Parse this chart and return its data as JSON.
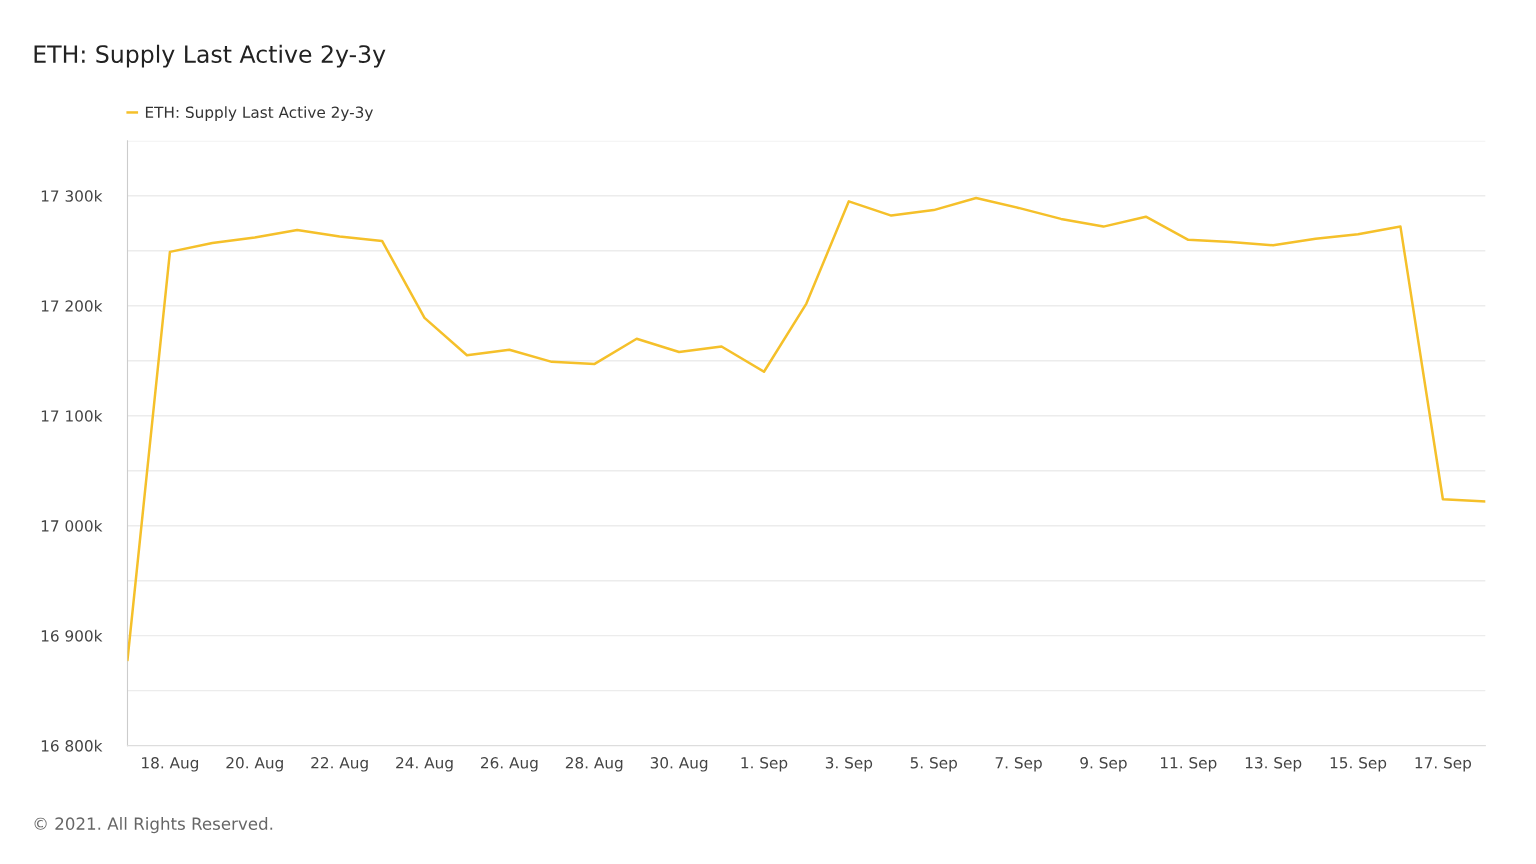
{
  "chart_data": {
    "type": "line",
    "title": "ETH: Supply Last Active 2y-3y",
    "annotations": [
      "© 2021. All Rights Reserved."
    ],
    "x": [
      "2021-08-17",
      "2021-08-18",
      "2021-08-19",
      "2021-08-20",
      "2021-08-21",
      "2021-08-22",
      "2021-08-23",
      "2021-08-24",
      "2021-08-25",
      "2021-08-26",
      "2021-08-27",
      "2021-08-28",
      "2021-08-29",
      "2021-08-30",
      "2021-08-31",
      "2021-09-01",
      "2021-09-02",
      "2021-09-03",
      "2021-09-04",
      "2021-09-05",
      "2021-09-06",
      "2021-09-07",
      "2021-09-08",
      "2021-09-09",
      "2021-09-10",
      "2021-09-11",
      "2021-09-12",
      "2021-09-13",
      "2021-09-14",
      "2021-09-15",
      "2021-09-16",
      "2021-09-17",
      "2021-09-18"
    ],
    "series": [
      {
        "name": "ETH: Supply Last Active 2y-3y",
        "color": "#f5c02a",
        "values": [
          16878,
          17249,
          17257,
          17262,
          17269,
          17263,
          17259,
          17189,
          17155,
          17160,
          17149,
          17147,
          17170,
          17158,
          17163,
          17140,
          17202,
          17295,
          17282,
          17287,
          17298,
          17289,
          17279,
          17272,
          17281,
          17260,
          17258,
          17255,
          17261,
          17265,
          17272,
          17024,
          17022
        ]
      }
    ],
    "xlim": [
      "2021-08-17",
      "2021-09-18"
    ],
    "xticks": [
      {
        "value": "2021-08-18",
        "label": "18. Aug"
      },
      {
        "value": "2021-08-20",
        "label": "20. Aug"
      },
      {
        "value": "2021-08-22",
        "label": "22. Aug"
      },
      {
        "value": "2021-08-24",
        "label": "24. Aug"
      },
      {
        "value": "2021-08-26",
        "label": "26. Aug"
      },
      {
        "value": "2021-08-28",
        "label": "28. Aug"
      },
      {
        "value": "2021-08-30",
        "label": "30. Aug"
      },
      {
        "value": "2021-09-01",
        "label": "1. Sep"
      },
      {
        "value": "2021-09-03",
        "label": "3. Sep"
      },
      {
        "value": "2021-09-05",
        "label": "5. Sep"
      },
      {
        "value": "2021-09-07",
        "label": "7. Sep"
      },
      {
        "value": "2021-09-09",
        "label": "9. Sep"
      },
      {
        "value": "2021-09-11",
        "label": "11. Sep"
      },
      {
        "value": "2021-09-13",
        "label": "13. Sep"
      },
      {
        "value": "2021-09-15",
        "label": "15. Sep"
      },
      {
        "value": "2021-09-17",
        "label": "17. Sep"
      }
    ],
    "ylim": [
      16800,
      17350
    ],
    "yticks": [
      {
        "value": 16800,
        "label": "16 800k"
      },
      {
        "value": 16850,
        "label": null
      },
      {
        "value": 16900,
        "label": "16 900k"
      },
      {
        "value": 16950,
        "label": null
      },
      {
        "value": 17000,
        "label": "17 000k"
      },
      {
        "value": 17050,
        "label": null
      },
      {
        "value": 17100,
        "label": "17 100k"
      },
      {
        "value": 17150,
        "label": null
      },
      {
        "value": 17200,
        "label": "17 200k"
      },
      {
        "value": 17250,
        "label": null
      },
      {
        "value": 17300,
        "label": "17 300k"
      },
      {
        "value": 17350,
        "label": null
      }
    ],
    "grid": "y",
    "legend": "top left",
    "marker": "none",
    "line_style": "solid"
  }
}
